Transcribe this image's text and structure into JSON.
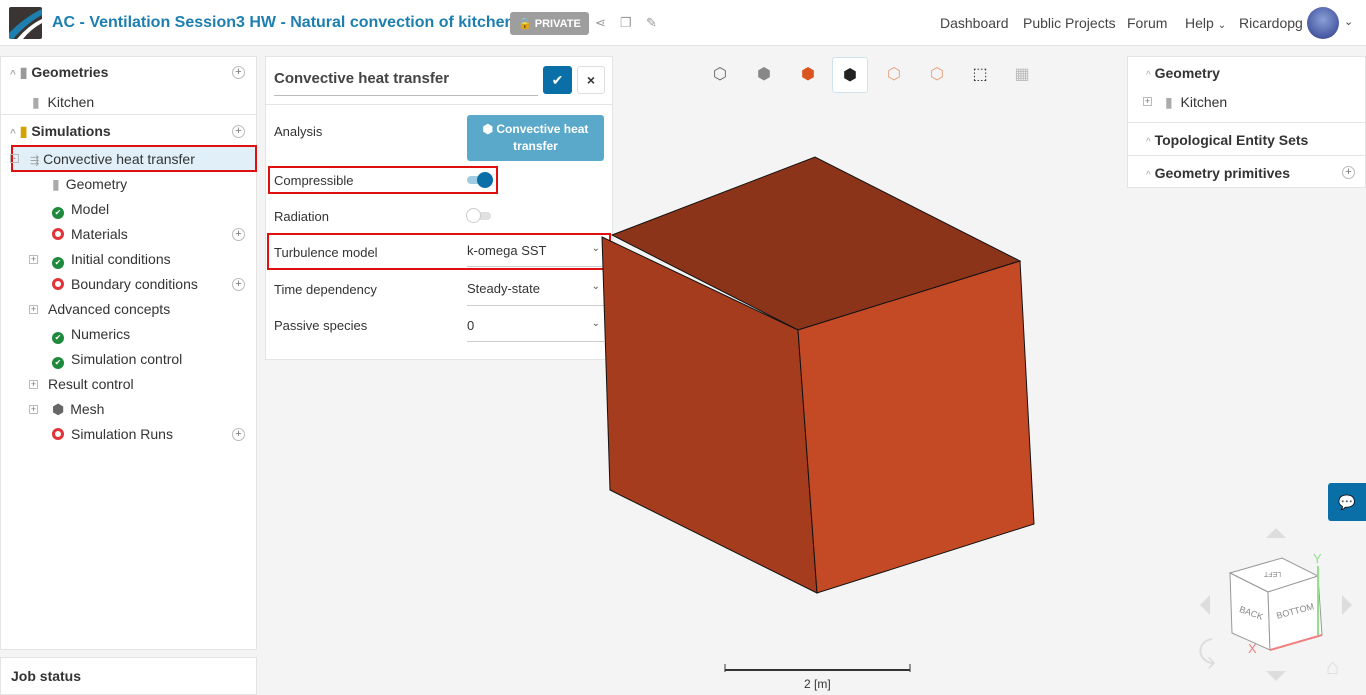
{
  "header": {
    "title": "AC - Ventilation Session3 HW - Natural convection of kitchen",
    "privacy_badge": "PRIVATE",
    "nav": [
      "Dashboard",
      "Public Projects",
      "Forum",
      "Help",
      "Ricardopg"
    ]
  },
  "tree": {
    "geometries": {
      "label": "Geometries",
      "items": [
        "Kitchen"
      ]
    },
    "simulations": {
      "label": "Simulations",
      "selected": "Convective heat transfer",
      "children": [
        {
          "label": "Geometry",
          "status": "ok"
        },
        {
          "label": "Model",
          "status": "ok"
        },
        {
          "label": "Materials",
          "status": "error"
        },
        {
          "label": "Initial conditions",
          "status": "ok"
        },
        {
          "label": "Boundary conditions",
          "status": "error"
        },
        {
          "label": "Advanced concepts",
          "status": "none"
        },
        {
          "label": "Numerics",
          "status": "ok"
        },
        {
          "label": "Simulation control",
          "status": "ok"
        },
        {
          "label": "Result control",
          "status": "none"
        },
        {
          "label": "Mesh",
          "status": "none"
        },
        {
          "label": "Simulation Runs",
          "status": "error"
        }
      ]
    }
  },
  "job_status": {
    "label": "Job status"
  },
  "settings": {
    "name": "Convective heat transfer",
    "analysis_label": "Analysis",
    "analysis_value": "Convective heat transfer",
    "compressible_label": "Compressible",
    "compressible": true,
    "radiation_label": "Radiation",
    "radiation": false,
    "turbulence_label": "Turbulence model",
    "turbulence_value": "k-omega SST",
    "time_label": "Time dependency",
    "time_value": "Steady-state",
    "passive_label": "Passive species",
    "passive_value": "0"
  },
  "right_panel": {
    "geometry": "Geometry",
    "geometry_item": "Kitchen",
    "topological": "Topological Entity Sets",
    "primitives": "Geometry primitives"
  },
  "viewport": {
    "scale_label": "2 [m]",
    "cube_labels": [
      "LEFT",
      "BACK",
      "BOTTOM"
    ],
    "axes": [
      "X",
      "Y"
    ]
  },
  "colors": {
    "accent": "#0a6fa6",
    "brand_title": "#1d7fb0",
    "cube_top": "#8b341a",
    "cube_left": "#a63c1e",
    "cube_right": "#c44a25",
    "highlight": "#e01010"
  }
}
